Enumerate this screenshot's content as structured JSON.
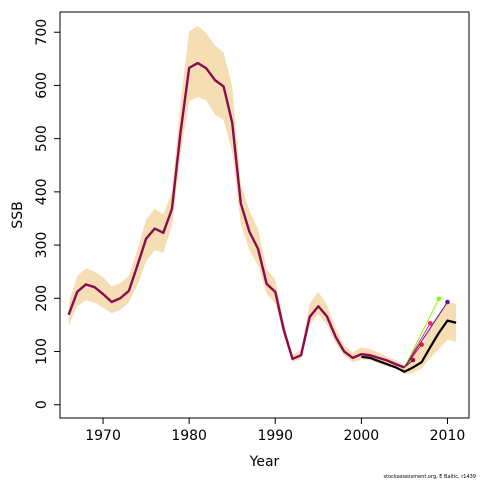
{
  "chart_data": {
    "type": "line",
    "xlabel": "Year",
    "ylabel": "SSB",
    "xlim": [
      1965,
      2012.5
    ],
    "ylim": [
      -25,
      738
    ],
    "x_ticks": [
      1970,
      1980,
      1990,
      2000,
      2010
    ],
    "y_ticks": [
      0,
      100,
      200,
      300,
      400,
      500,
      600,
      700
    ],
    "grid": false,
    "legend": "none",
    "credit": "stockassessment.org, E Baltic, r1439",
    "colors": {
      "band": "#f5deb3",
      "main_line": "#8b0a50",
      "current_line": "#000000",
      "retro": [
        "#8b0a50",
        "#e02020",
        "#ff1493",
        "#7cfc00",
        "#551a8b"
      ]
    },
    "band": {
      "x": [
        1966,
        1967,
        1968,
        1969,
        1970,
        1971,
        1972,
        1973,
        1974,
        1975,
        1976,
        1977,
        1978,
        1979,
        1980,
        1981,
        1982,
        1983,
        1984,
        1985,
        1986,
        1987,
        1988,
        1989,
        1990,
        1991,
        1992,
        1993,
        1994,
        1995,
        1996,
        1997,
        1998,
        1999,
        2000,
        2001,
        2002,
        2003,
        2004,
        2005,
        2006,
        2007,
        2008,
        2009,
        2010,
        2011
      ],
      "lower": [
        148,
        185,
        196,
        192,
        182,
        172,
        178,
        192,
        225,
        270,
        290,
        285,
        335,
        470,
        570,
        578,
        572,
        545,
        535,
        475,
        340,
        290,
        262,
        208,
        190,
        128,
        80,
        86,
        150,
        170,
        150,
        115,
        92,
        80,
        85,
        84,
        78,
        72,
        68,
        58,
        60,
        68,
        88,
        105,
        122,
        118
      ],
      "upper": [
        190,
        242,
        256,
        250,
        240,
        222,
        228,
        242,
        292,
        348,
        368,
        358,
        400,
        568,
        702,
        712,
        698,
        675,
        662,
        598,
        415,
        365,
        330,
        255,
        235,
        152,
        94,
        104,
        190,
        212,
        188,
        145,
        112,
        98,
        108,
        105,
        98,
        90,
        84,
        75,
        92,
        110,
        150,
        172,
        192,
        190
      ]
    },
    "series": [
      {
        "role": "assessment",
        "x": [
          1966,
          1967,
          1968,
          1969,
          1970,
          1971,
          1972,
          1973,
          1974,
          1975,
          1976,
          1977,
          1978,
          1979,
          1980,
          1981,
          1982,
          1983,
          1984,
          1985,
          1986,
          1987,
          1988,
          1989,
          1990,
          1991,
          1992,
          1993,
          1994,
          1995,
          1996,
          1997,
          1998,
          1999,
          2000,
          2001,
          2002,
          2003,
          2004,
          2005
        ],
        "y": [
          169,
          212,
          226,
          221,
          208,
          193,
          200,
          214,
          262,
          312,
          331,
          323,
          368,
          512,
          633,
          642,
          632,
          610,
          598,
          530,
          378,
          325,
          293,
          227,
          212,
          140,
          86,
          93,
          165,
          185,
          166,
          128,
          100,
          88,
          95,
          93,
          88,
          83,
          76,
          70
        ]
      },
      {
        "role": "current",
        "x": [
          2000,
          2001,
          2002,
          2003,
          2004,
          2005,
          2006,
          2007,
          2008,
          2009,
          2010,
          2011
        ],
        "y": [
          90,
          88,
          82,
          76,
          70,
          62,
          70,
          80,
          108,
          135,
          158,
          154
        ]
      }
    ],
    "retro_endpoints": [
      {
        "x": 2006,
        "y": 84
      },
      {
        "x": 2007,
        "y": 113
      },
      {
        "x": 2008,
        "y": 153
      },
      {
        "x": 2009,
        "y": 199
      },
      {
        "x": 2010,
        "y": 193
      }
    ]
  }
}
